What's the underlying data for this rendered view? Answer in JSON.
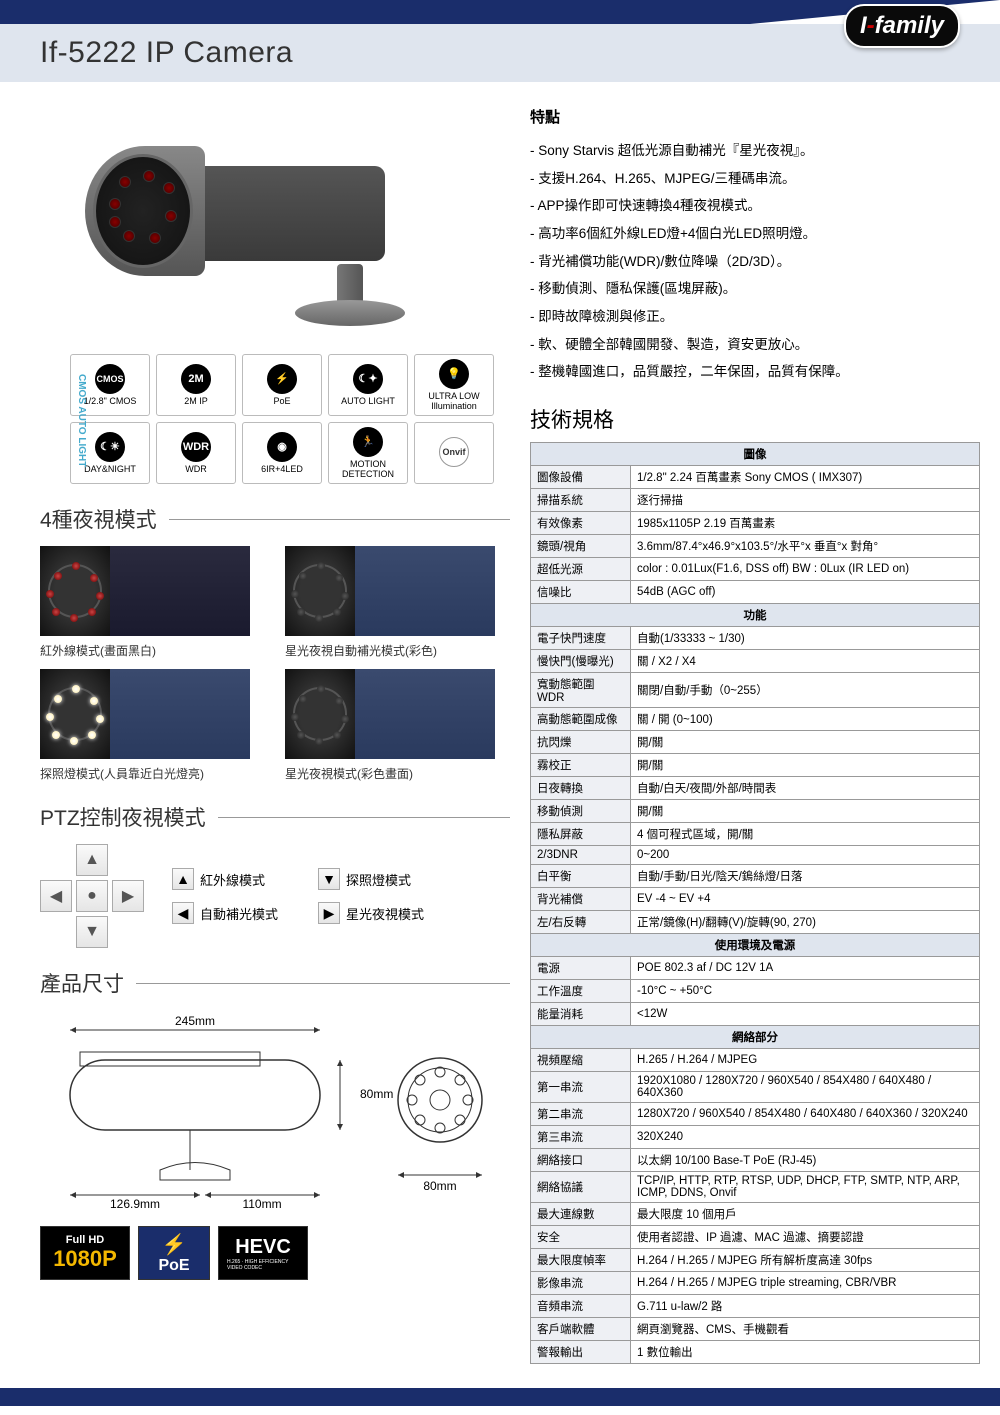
{
  "header": {
    "title": "If-5222  IP Camera",
    "logo_prefix": "I",
    "logo_suffix": "family"
  },
  "feature_icons": {
    "side_label": "CMOS AUTO LIGHT",
    "items": [
      {
        "icon": "CMOS",
        "label": "1/2.8\" CMOS",
        "bg": "#000"
      },
      {
        "icon": "2M",
        "label": "2M IP",
        "bg": "#000"
      },
      {
        "icon": "⚡",
        "label": "PoE",
        "bg": "#000"
      },
      {
        "icon": "☾✦",
        "label": "AUTO LIGHT",
        "bg": "#000"
      },
      {
        "icon": "💡",
        "label": "ULTRA LOW Illumination",
        "bg": "#000"
      },
      {
        "icon": "☾☀",
        "label": "DAY&NIGHT",
        "bg": "#000"
      },
      {
        "icon": "WDR",
        "label": "WDR",
        "bg": "#000"
      },
      {
        "icon": "◉",
        "label": "6IR+4LED",
        "bg": "#000"
      },
      {
        "icon": "🏃",
        "label": "MOTION DETECTION",
        "bg": "#000"
      },
      {
        "icon": "Onvif",
        "label": "",
        "bg": "#fff"
      }
    ]
  },
  "night_modes": {
    "title": "4種夜視模式",
    "items": [
      {
        "label": "紅外線模式(畫面黑白)",
        "led_color": "#c44",
        "scene": "bw"
      },
      {
        "label": "星光夜視自動補光模式(彩色)",
        "led_color": "#444",
        "scene": "color"
      },
      {
        "label": "探照燈模式(人員靠近白光燈亮)",
        "led_color": "#fff",
        "scene": "color"
      },
      {
        "label": "星光夜視模式(彩色畫面)",
        "led_color": "#444",
        "scene": "color"
      }
    ]
  },
  "ptz": {
    "title": "PTZ控制夜視模式",
    "legend": [
      {
        "arrow": "↑",
        "label": "紅外線模式"
      },
      {
        "arrow": "↓",
        "label": "探照燈模式"
      },
      {
        "arrow": "←",
        "label": "自動補光模式"
      },
      {
        "arrow": "→",
        "label": "星光夜視模式"
      }
    ]
  },
  "dimensions": {
    "title": "產品尺寸",
    "w_total": "245mm",
    "w_left": "126.9mm",
    "w_right": "110mm",
    "h_side": "80mm",
    "d_face": "80mm"
  },
  "features": {
    "title": "特點",
    "items": [
      "Sony Starvis 超低光源自動補光『星光夜視』。",
      "支援H.264、H.265、MJPEG/三種碼串流。",
      "APP操作即可快速轉換4種夜視模式。",
      "高功率6個紅外線LED燈+4個白光LED照明燈。",
      "背光補償功能(WDR)/數位降噪（2D/3D）。",
      "移動偵測、隱私保護(區塊屏蔽)。",
      "即時故障檢測與修正。",
      "軟、硬體全部韓國開發、製造，資安更放心。",
      "整機韓國進口，品質嚴控，二年保固，品質有保障。"
    ]
  },
  "spec": {
    "title": "技術規格",
    "sections": [
      {
        "name": "圖像",
        "rows": [
          [
            "圖像設備",
            "1/2.8\" 2.24 百萬畫素 Sony CMOS ( IMX307)"
          ],
          [
            "掃描系統",
            "逐行掃描"
          ],
          [
            "有效像素",
            "1985x1105P 2.19 百萬畫素"
          ],
          [
            "鏡頭/視角",
            "3.6mm/87.4°x46.9°x103.5°/水平°x 垂直°x 對角°"
          ],
          [
            "超低光源",
            "color : 0.01Lux(F1.6, DSS off) BW : 0Lux (IR LED on)"
          ],
          [
            "信噪比",
            "54dB (AGC off)"
          ]
        ]
      },
      {
        "name": "功能",
        "rows": [
          [
            "電子快門速度",
            "自動(1/33333 ~ 1/30)"
          ],
          [
            "慢快門(慢曝光)",
            "關 / X2 / X4"
          ],
          [
            "寬動態範圍 WDR",
            "關閉/自動/手動（0~255）"
          ],
          [
            "高動態範圍成像",
            "關 / 開 (0~100)"
          ],
          [
            "抗閃爍",
            "開/關"
          ],
          [
            "霧校正",
            "開/關"
          ],
          [
            "日夜轉換",
            "自動/白天/夜間/外部/時間表"
          ],
          [
            "移動偵測",
            "開/關"
          ],
          [
            "隱私屏蔽",
            "4 個可程式區域，開/關"
          ],
          [
            "2/3DNR",
            "0~200"
          ],
          [
            "白平衡",
            "自動/手動/日光/陰天/鎢絲燈/日落"
          ],
          [
            "背光補償",
            "EV -4 ~ EV +4"
          ],
          [
            "左/右反轉",
            "正常/鏡像(H)/翻轉(V)/旋轉(90, 270)"
          ]
        ]
      },
      {
        "name": "使用環境及電源",
        "rows": [
          [
            "電源",
            "POE 802.3 af / DC 12V 1A"
          ],
          [
            "工作溫度",
            "-10°C ~ +50°C"
          ],
          [
            "能量消耗",
            "<12W"
          ]
        ]
      },
      {
        "name": "網絡部分",
        "rows": [
          [
            "視頻壓縮",
            "H.265 / H.264 / MJPEG"
          ],
          [
            "第一串流",
            "1920X1080 / 1280X720 / 960X540 / 854X480 / 640X480 / 640X360"
          ],
          [
            "第二串流",
            "1280X720 / 960X540 / 854X480 / 640X480 / 640X360 / 320X240"
          ],
          [
            "第三串流",
            "320X240"
          ],
          [
            "網絡接口",
            "以太網 10/100 Base-T PoE (RJ-45)"
          ],
          [
            "網絡協議",
            "TCP/IP, HTTP, RTP, RTSP, UDP, DHCP, FTP, SMTP, NTP, ARP, ICMP, DDNS, Onvif"
          ],
          [
            "最大連線數",
            "最大限度 10 個用戶"
          ],
          [
            "安全",
            "使用者認證、IP 過濾、MAC 過濾、摘要認證"
          ],
          [
            "最大限度幀率",
            "H.264 / H.265 / MJPEG 所有解析度高達 30fps"
          ],
          [
            "影像串流",
            "H.264 / H.265 / MJPEG triple streaming, CBR/VBR"
          ],
          [
            "音頻串流",
            "G.711 u-law/2 路"
          ],
          [
            "客戶端軟體",
            "網頁瀏覽器、CMS、手機觀看"
          ],
          [
            "警報輸出",
            "1 數位輸出"
          ]
        ]
      }
    ]
  },
  "badges": {
    "fhd_top": "Full HD",
    "fhd_big": "1080P",
    "poe": "PoE",
    "hevc": "HEVC",
    "hevc_sub": "H.265 · HIGH EFFICIENCY VIDEO CODEC"
  },
  "colors": {
    "brand_navy": "#1a2d6b",
    "band_bg": "#dfe5ee",
    "spec_cat_bg": "#dfe5ee",
    "spec_lbl_bg": "#eef0f4",
    "border": "#999999"
  }
}
